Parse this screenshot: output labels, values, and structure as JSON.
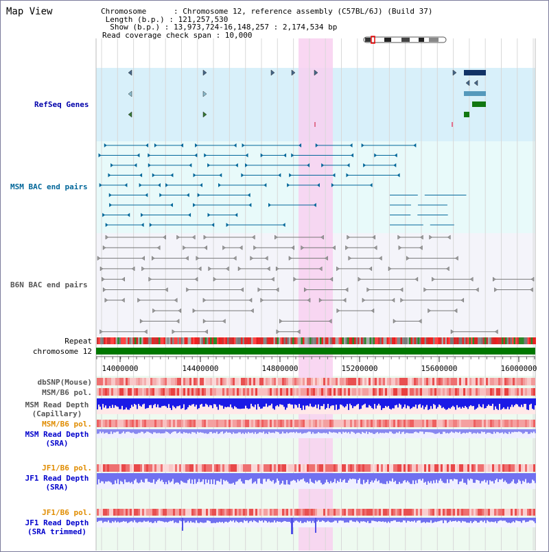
{
  "header": {
    "title": "Map View",
    "chromosome_line": "Chromosome      : Chromosome 12, reference assembly (C57BL/6J) (Build 37)",
    "length_line": " Length (b.p.) : 121,257,530",
    "show_line": "  Show (b.p.) : 13,973,724-16,148,257 : 2,174,534 bp",
    "span_line": "Read coverage check span : 10,000"
  },
  "tracks": {
    "refseq": "RefSeq Genes",
    "msm_bac": "MSM BAC end pairs",
    "b6n_bac": "B6N BAC end pairs",
    "repeat": "Repeat",
    "chromosome": "chromosome 12",
    "dbsnp": "dbSNP(Mouse)",
    "msm_b6_pol_1": "MSM/B6 pol.",
    "msm_depth_cap_1": "MSM Read Depth",
    "msm_depth_cap_2": "(Capillary)",
    "msm_b6_pol_2": "MSM/B6 pol.",
    "msm_depth_sra_1": "MSM Read Depth",
    "msm_depth_sra_2": "(SRA)",
    "jf1_pol_1": "JF1/B6 pol.",
    "jf1_depth_1": "JF1 Read Depth",
    "jf1_depth_2": "(SRA)",
    "jf1_pol_2": "JF1/B6 pol.",
    "jf1_trim_1": "JF1 Read Depth",
    "jf1_trim_2": "(SRA trimmed)"
  },
  "axis": {
    "ticks": [
      "14000000",
      "14400000",
      "14800000",
      "15200000",
      "15600000",
      "16000000"
    ]
  },
  "colors": {
    "refseq_label": "#0000aa",
    "msm_bac_label": "#006699",
    "b6n_label": "#555555",
    "orange_label": "#e08c00",
    "blue_label": "#0000cc",
    "highlight": "#f8d0f0",
    "chromosome_bar": "#007700"
  }
}
